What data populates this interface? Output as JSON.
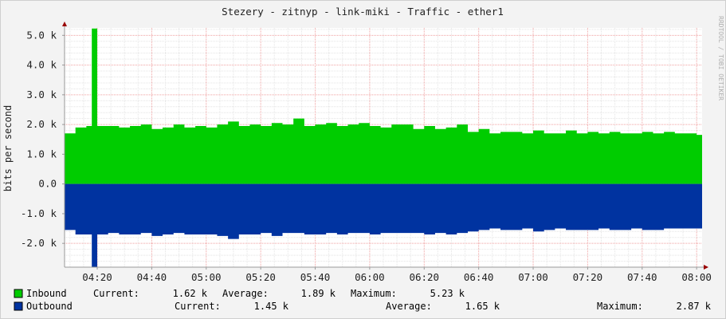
{
  "chart_data": {
    "type": "area",
    "title": "Stezery - zitnyp - link-miki - Traffic - ether1",
    "ylabel": "bits per second",
    "watermark": "RRDTOOL / TOBI OETIKER",
    "ylim": [
      -2800,
      5250
    ],
    "yticks": [
      -2000,
      -1000,
      0,
      1000,
      2000,
      3000,
      4000,
      5000
    ],
    "ytick_labels": [
      "-2.0 k",
      "-1.0 k",
      "0.0",
      "1.0 k",
      "2.0 k",
      "3.0 k",
      "4.0 k",
      "5.0 k"
    ],
    "xrange_minutes": [
      248,
      482
    ],
    "xticks_minutes": [
      260,
      280,
      300,
      320,
      340,
      360,
      380,
      400,
      420,
      440,
      460,
      480
    ],
    "xtick_labels": [
      "04:20",
      "04:40",
      "05:00",
      "05:20",
      "05:40",
      "06:00",
      "06:20",
      "06:40",
      "07:00",
      "07:20",
      "07:40",
      "08:00"
    ],
    "grid": true,
    "colors": {
      "inbound": "#00cc00",
      "outbound": "#0033a0",
      "grid_major": "#f0a0a0",
      "axis": "#999999",
      "arrow": "#990000",
      "plot_bg": "#ffffff",
      "page_bg": "#f3f3f3"
    },
    "series": [
      {
        "name": "Inbound",
        "color": "#00cc00",
        "x": [
          248,
          252,
          256,
          258,
          260,
          264,
          268,
          272,
          276,
          280,
          284,
          288,
          292,
          296,
          300,
          304,
          308,
          312,
          316,
          320,
          324,
          328,
          332,
          336,
          340,
          344,
          348,
          352,
          356,
          360,
          364,
          368,
          372,
          376,
          380,
          384,
          388,
          392,
          396,
          400,
          404,
          408,
          412,
          416,
          420,
          424,
          428,
          432,
          436,
          440,
          444,
          448,
          452,
          456,
          460,
          464,
          468,
          472,
          476,
          480,
          482
        ],
        "values": [
          1700,
          1900,
          1950,
          5230,
          1950,
          1950,
          1900,
          1950,
          2000,
          1850,
          1900,
          2000,
          1900,
          1950,
          1900,
          2000,
          2100,
          1950,
          2000,
          1950,
          2050,
          2000,
          2200,
          1950,
          2000,
          2050,
          1950,
          2000,
          2050,
          1950,
          1900,
          2000,
          2000,
          1850,
          1950,
          1850,
          1900,
          2000,
          1750,
          1850,
          1700,
          1750,
          1750,
          1700,
          1800,
          1700,
          1700,
          1800,
          1700,
          1750,
          1700,
          1750,
          1700,
          1700,
          1750,
          1700,
          1750,
          1700,
          1700,
          1650,
          1620
        ]
      },
      {
        "name": "Outbound",
        "color": "#0033a0",
        "x": [
          248,
          252,
          256,
          258,
          260,
          264,
          268,
          272,
          276,
          280,
          284,
          288,
          292,
          296,
          300,
          304,
          308,
          312,
          316,
          320,
          324,
          328,
          332,
          336,
          340,
          344,
          348,
          352,
          356,
          360,
          364,
          368,
          372,
          376,
          380,
          384,
          388,
          392,
          396,
          400,
          404,
          408,
          412,
          416,
          420,
          424,
          428,
          432,
          436,
          440,
          444,
          448,
          452,
          456,
          460,
          464,
          468,
          472,
          476,
          480,
          482
        ],
        "values": [
          -1550,
          -1700,
          -1700,
          -2870,
          -1700,
          -1650,
          -1700,
          -1700,
          -1650,
          -1750,
          -1700,
          -1650,
          -1700,
          -1700,
          -1700,
          -1750,
          -1850,
          -1700,
          -1700,
          -1650,
          -1750,
          -1650,
          -1650,
          -1700,
          -1700,
          -1650,
          -1700,
          -1650,
          -1650,
          -1700,
          -1650,
          -1650,
          -1650,
          -1650,
          -1700,
          -1650,
          -1700,
          -1650,
          -1600,
          -1550,
          -1500,
          -1550,
          -1550,
          -1500,
          -1600,
          -1550,
          -1500,
          -1550,
          -1550,
          -1550,
          -1500,
          -1550,
          -1550,
          -1500,
          -1550,
          -1550,
          -1500,
          -1500,
          -1500,
          -1500,
          -1450
        ]
      }
    ]
  },
  "legend": [
    {
      "name": "Inbound",
      "color": "#00cc00",
      "current_label": "Current:",
      "current_value": "1.62 k",
      "average_label": "Average:",
      "average_value": "1.89 k",
      "maximum_label": "Maximum:",
      "maximum_value": "5.23 k"
    },
    {
      "name": "Outbound",
      "color": "#0033a0",
      "current_label": "Current:",
      "current_value": "1.45 k",
      "average_label": "Average:",
      "average_value": "1.65 k",
      "maximum_label": "Maximum:",
      "maximum_value": "2.87 k"
    }
  ]
}
